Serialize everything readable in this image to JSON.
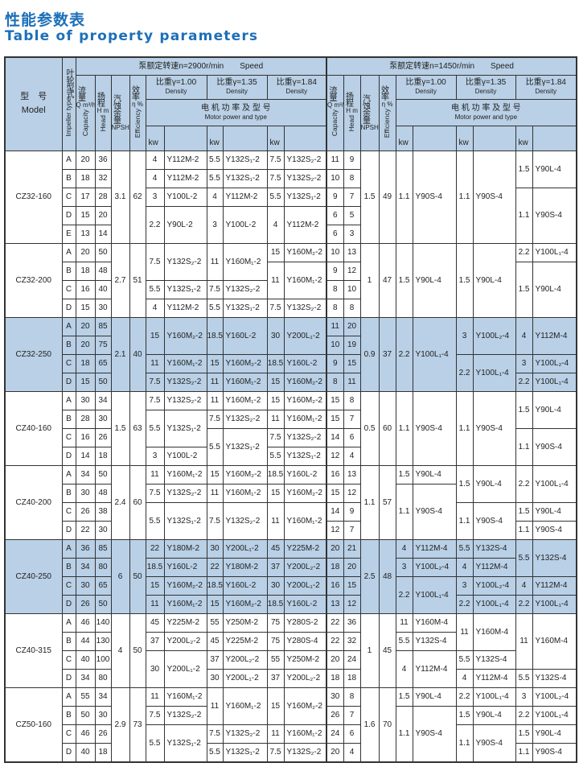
{
  "title_cn": "性能参数表",
  "title_en": "Table of property parameters",
  "header": {
    "model_cn": "型　号",
    "model_en": "Model",
    "impeller_cn": "叶轮型式",
    "impeller_en": "Impeller type",
    "speed1": "泵额定转速n=2900r/min　　Speed",
    "speed2": "泵额定转速n=1450r/min　　Speed",
    "capacity_cn": "流量",
    "capacity_unit": "Q m³/h",
    "capacity_en": "Capacity",
    "head_cn": "扬程",
    "head_unit": "H m",
    "head_en": "Head",
    "npsh_cn": "汽蚀余量",
    "npsh_unit": "NPSH m",
    "eff_cn": "效率",
    "eff_unit": "η %",
    "eff_en": "Efficiency",
    "density_labels": [
      "比重γ=1.00",
      "比重γ=1.35",
      "比重γ=1.84"
    ],
    "density_en": "Density",
    "motor_cn": "电 机 功 率 及 型 号",
    "motor_en": "Motor power and type",
    "kw": "kw"
  },
  "highlight_color": "#b9d0e6",
  "title_color": "#1d6fb8",
  "groups": [
    {
      "model": "CZ32-160",
      "blue": false,
      "imp": [
        "A",
        "B",
        "C",
        "D",
        "E"
      ],
      "q": [
        "20",
        "18",
        "17",
        "15",
        "13"
      ],
      "h": [
        "36",
        "32",
        "28",
        "20",
        "14"
      ],
      "npsh": "3.1",
      "eff": "62",
      "m1": [
        [
          "4",
          "Y112M-2",
          1
        ],
        [
          "4",
          "Y112M-2",
          1
        ],
        [
          "3",
          "Y100L-2",
          1
        ],
        [
          "2.2",
          "Y90L-2",
          2
        ]
      ],
      "m2": [
        [
          "5.5",
          "Y132S₁-2",
          1
        ],
        [
          "5.5",
          "Y132S₁-2",
          1
        ],
        [
          "4",
          "Y112M-2",
          1
        ],
        [
          "3",
          "Y100L-2",
          2
        ]
      ],
      "m3": [
        [
          "7.5",
          "Y132S₂-2",
          1
        ],
        [
          "7.5",
          "Y132S₂-2",
          1
        ],
        [
          "5.5",
          "Y132S₁-2",
          1
        ],
        [
          "4",
          "Y112M-2",
          2
        ]
      ],
      "q2": [
        "11",
        "10",
        "9",
        "6",
        "6"
      ],
      "h2": [
        "9",
        "8",
        "7",
        "5",
        "3"
      ],
      "npsh2": "1.5",
      "eff2": "49",
      "m4": [
        [
          "1.1",
          "Y90S-4",
          5
        ]
      ],
      "m5": [
        [
          "1.1",
          "Y90S-4",
          5
        ]
      ],
      "m6": [
        [
          "1.5",
          "Y90L-4",
          2
        ],
        [
          "1.1",
          "Y90S-4",
          3
        ]
      ]
    },
    {
      "model": "CZ32-200",
      "blue": false,
      "imp": [
        "A",
        "B",
        "C",
        "D"
      ],
      "q": [
        "20",
        "18",
        "16",
        "15"
      ],
      "h": [
        "50",
        "48",
        "40",
        "30"
      ],
      "npsh": "2.7",
      "eff": "51",
      "m1": [
        [
          "7.5",
          "Y132S₂-2",
          2
        ],
        [
          "5.5",
          "Y132S₁-2",
          1
        ],
        [
          "4",
          "Y112M-2",
          1
        ]
      ],
      "m2": [
        [
          "11",
          "Y160M₁-2",
          2
        ],
        [
          "7.5",
          "Y132S₂-2",
          1
        ],
        [
          "5.5",
          "Y132S₁-2",
          1
        ]
      ],
      "m3": [
        [
          "15",
          "Y160M₂-2",
          1
        ],
        [
          "11",
          "Y160M₁-2",
          2
        ],
        [
          "7.5",
          "Y132S₂-2",
          1
        ]
      ],
      "q2": [
        "10",
        "9",
        "8",
        "8"
      ],
      "h2": [
        "13",
        "12",
        "10",
        "8"
      ],
      "npsh2": "1",
      "eff2": "47",
      "m4": [
        [
          "1.5",
          "Y90L-4",
          4
        ]
      ],
      "m5": [
        [
          "1.5",
          "Y90L-4",
          4
        ]
      ],
      "m6": [
        [
          "2.2",
          "Y100L₁-4",
          1
        ],
        [
          "1.5",
          "Y90L-4",
          3
        ]
      ]
    },
    {
      "model": "CZ32-250",
      "blue": true,
      "imp": [
        "A",
        "B",
        "C",
        "D"
      ],
      "q": [
        "20",
        "20",
        "18",
        "15"
      ],
      "h": [
        "85",
        "75",
        "65",
        "50"
      ],
      "npsh": "2.1",
      "eff": "40",
      "m1": [
        [
          "15",
          "Y160M₂-2",
          2
        ],
        [
          "11",
          "Y160M₁-2",
          1
        ],
        [
          "7.5",
          "Y132S₂-2",
          1
        ]
      ],
      "m2": [
        [
          "18.5",
          "Y160L-2",
          2
        ],
        [
          "15",
          "Y160M₂-2",
          1
        ],
        [
          "11",
          "Y160M₁-2",
          1
        ]
      ],
      "m3": [
        [
          "30",
          "Y200L₁-2",
          2
        ],
        [
          "18.5",
          "Y160L-2",
          1
        ],
        [
          "15",
          "Y160M₂-2",
          1
        ]
      ],
      "q2": [
        "11",
        "10",
        "9",
        "8"
      ],
      "h2": [
        "20",
        "19",
        "15",
        "11"
      ],
      "npsh2": "0.9",
      "eff2": "37",
      "m4": [
        [
          "2.2",
          "Y100L₁-4",
          4
        ]
      ],
      "m5": [
        [
          "3",
          "Y100L₂-4",
          2
        ],
        [
          "2.2",
          "Y100L₁-4",
          2
        ]
      ],
      "m6": [
        [
          "4",
          "Y112M-4",
          2
        ],
        [
          "3",
          "Y100L₂-4",
          1
        ],
        [
          "2.2",
          "Y100L₁-4",
          1
        ]
      ]
    },
    {
      "model": "CZ40-160",
      "blue": false,
      "imp": [
        "A",
        "B",
        "C",
        "D"
      ],
      "q": [
        "30",
        "28",
        "16",
        "14"
      ],
      "h": [
        "34",
        "30",
        "26",
        "18"
      ],
      "npsh": "1.5",
      "eff": "63",
      "m1": [
        [
          "7.5",
          "Y132S₂-2",
          1
        ],
        [
          "5.5",
          "Y132S₁-2",
          2
        ],
        [
          "3",
          "Y100L-2",
          1
        ]
      ],
      "m2": [
        [
          "11",
          "Y160M₁-2",
          1
        ],
        [
          "7.5",
          "Y132S₂-2",
          1
        ],
        [
          "5.5",
          "Y132S₁-2",
          2
        ]
      ],
      "m3": [
        [
          "15",
          "Y160M₂-2",
          1
        ],
        [
          "11",
          "Y160M₁-2",
          1
        ],
        [
          "7.5",
          "Y132S₂-2",
          1
        ],
        [
          "5.5",
          "Y132S₁-2",
          1
        ]
      ],
      "q2": [
        "15",
        "15",
        "14",
        "12"
      ],
      "h2": [
        "8",
        "7",
        "6",
        "4"
      ],
      "npsh2": "0.5",
      "eff2": "60",
      "m4": [
        [
          "1.1",
          "Y90S-4",
          4
        ]
      ],
      "m5": [
        [
          "1.1",
          "Y90S-4",
          4
        ]
      ],
      "m6": [
        [
          "1.5",
          "Y90L-4",
          2
        ],
        [
          "1.1",
          "Y90S-4",
          2
        ]
      ]
    },
    {
      "model": "CZ40-200",
      "blue": false,
      "imp": [
        "A",
        "B",
        "C",
        "D"
      ],
      "q": [
        "34",
        "30",
        "26",
        "22"
      ],
      "h": [
        "50",
        "48",
        "38",
        "30"
      ],
      "npsh": "2.4",
      "eff": "60",
      "m1": [
        [
          "11",
          "Y160M₁-2",
          1
        ],
        [
          "7.5",
          "Y132S₂-2",
          1
        ],
        [
          "5.5",
          "Y132S₁-2",
          2
        ]
      ],
      "m2": [
        [
          "15",
          "Y160M₂-2",
          1
        ],
        [
          "11",
          "Y160M₁-2",
          1
        ],
        [
          "7.5",
          "Y132S₂-2",
          2
        ]
      ],
      "m3": [
        [
          "18.5",
          "Y160L-2",
          1
        ],
        [
          "15",
          "Y160M₂-2",
          1
        ],
        [
          "11",
          "Y160M₁-2",
          2
        ]
      ],
      "q2": [
        "16",
        "15",
        "14",
        "12"
      ],
      "h2": [
        "13",
        "12",
        "9",
        "7"
      ],
      "npsh2": "1.1",
      "eff2": "57",
      "m4": [
        [
          "1.5",
          "Y90L-4",
          1
        ],
        [
          "1.1",
          "Y90S-4",
          3
        ]
      ],
      "m5": [
        [
          "1.5",
          "Y90L-4",
          2
        ],
        [
          "1.1",
          "Y90S-4",
          2
        ]
      ],
      "m6": [
        [
          "2.2",
          "Y100L₁-4",
          2
        ],
        [
          "1.5",
          "Y90L-4",
          1
        ],
        [
          "1.1",
          "Y90S-4",
          1
        ]
      ]
    },
    {
      "model": "CZ40-250",
      "blue": true,
      "imp": [
        "A",
        "B",
        "C",
        "D"
      ],
      "q": [
        "36",
        "34",
        "30",
        "26"
      ],
      "h": [
        "85",
        "80",
        "65",
        "50"
      ],
      "npsh": "6",
      "eff": "50",
      "m1": [
        [
          "22",
          "Y180M-2",
          1
        ],
        [
          "18.5",
          "Y160L-2",
          1
        ],
        [
          "15",
          "Y160M₂-2",
          1
        ],
        [
          "11",
          "Y160M₁-2",
          1
        ]
      ],
      "m2": [
        [
          "30",
          "Y200L₁-2",
          1
        ],
        [
          "22",
          "Y180M-2",
          1
        ],
        [
          "18.5",
          "Y160L-2",
          1
        ],
        [
          "15",
          "Y160M₂-2",
          1
        ]
      ],
      "m3": [
        [
          "45",
          "Y225M-2",
          1
        ],
        [
          "37",
          "Y200L₂-2",
          1
        ],
        [
          "30",
          "Y200L₁-2",
          1
        ],
        [
          "18.5",
          "Y160L-2",
          1
        ]
      ],
      "q2": [
        "20",
        "18",
        "16",
        "13"
      ],
      "h2": [
        "21",
        "20",
        "15",
        "12"
      ],
      "npsh2": "2.5",
      "eff2": "48",
      "m4": [
        [
          "4",
          "Y112M-4",
          1
        ],
        [
          "3",
          "Y100L₂-4",
          1
        ],
        [
          "2.2",
          "Y100L₁-4",
          2
        ]
      ],
      "m5": [
        [
          "5.5",
          "Y132S-4",
          1
        ],
        [
          "4",
          "Y112M-4",
          1
        ],
        [
          "3",
          "Y100L₂-4",
          1
        ],
        [
          "2.2",
          "Y100L₁-4",
          1
        ]
      ],
      "m6": [
        [
          "5.5",
          "Y132S-4",
          2
        ],
        [
          "4",
          "Y112M-4",
          1
        ],
        [
          "2.2",
          "Y100L₁-4",
          1
        ]
      ]
    },
    {
      "model": "CZ40-315",
      "blue": false,
      "imp": [
        "A",
        "B",
        "C",
        "D"
      ],
      "q": [
        "46",
        "44",
        "40",
        "34"
      ],
      "h": [
        "140",
        "130",
        "100",
        "80"
      ],
      "npsh": "4",
      "eff": "50",
      "m1": [
        [
          "45",
          "Y225M-2",
          1
        ],
        [
          "37",
          "Y200L₂-2",
          1
        ],
        [
          "30",
          "Y200L₁-2",
          2
        ]
      ],
      "m2": [
        [
          "55",
          "Y250M-2",
          1
        ],
        [
          "45",
          "Y225M-2",
          1
        ],
        [
          "37",
          "Y200L₂-2",
          1
        ],
        [
          "30",
          "Y200L₁-2",
          1
        ]
      ],
      "m3": [
        [
          "75",
          "Y280S-2",
          1
        ],
        [
          "75",
          "Y280S-4",
          1
        ],
        [
          "55",
          "Y250M-2",
          1
        ],
        [
          "37",
          "Y200L₂-2",
          1
        ]
      ],
      "q2": [
        "22",
        "22",
        "20",
        "18"
      ],
      "h2": [
        "36",
        "32",
        "24",
        "18"
      ],
      "npsh2": "1",
      "eff2": "45",
      "m4": [
        [
          "11",
          "Y160M-4",
          1
        ],
        [
          "5.5",
          "Y132S-4",
          1
        ],
        [
          "4",
          "Y112M-4",
          2
        ]
      ],
      "m5": [
        [
          "11",
          "Y160M-4",
          2
        ],
        [
          "5.5",
          "Y132S-4",
          1
        ],
        [
          "4",
          "Y112M-4",
          1
        ]
      ],
      "m6": [
        [
          "11",
          "Y160M-4",
          3
        ],
        [
          "5.5",
          "Y132S-4",
          1
        ]
      ]
    },
    {
      "model": "CZ50-160",
      "blue": false,
      "imp": [
        "A",
        "B",
        "C",
        "D"
      ],
      "q": [
        "55",
        "50",
        "46",
        "40"
      ],
      "h": [
        "34",
        "30",
        "26",
        "18"
      ],
      "npsh": "2.9",
      "eff": "73",
      "m1": [
        [
          "11",
          "Y160M₁-2",
          1
        ],
        [
          "7.5",
          "Y132S₂-2",
          1
        ],
        [
          "5.5",
          "Y132S₁-2",
          2
        ]
      ],
      "m2": [
        [
          "11",
          "Y160M₁-2",
          2
        ],
        [
          "7.5",
          "Y132S₂-2",
          1
        ],
        [
          "5.5",
          "Y132S₁-2",
          1
        ]
      ],
      "m3": [
        [
          "15",
          "Y160M₂-2",
          2
        ],
        [
          "11",
          "Y160M₁-2",
          1
        ],
        [
          "7.5",
          "Y132S₂-2",
          1
        ]
      ],
      "q2": [
        "30",
        "26",
        "24",
        "20"
      ],
      "h2": [
        "8",
        "7",
        "6",
        "4"
      ],
      "npsh2": "1.6",
      "eff2": "70",
      "m4": [
        [
          "1.5",
          "Y90L-4",
          1
        ],
        [
          "1.1",
          "Y90S-4",
          3
        ]
      ],
      "m5": [
        [
          "2.2",
          "Y100L₁-4",
          1
        ],
        [
          "1.5",
          "Y90L-4",
          1
        ],
        [
          "1.1",
          "Y90S-4",
          2
        ]
      ],
      "m6": [
        [
          "3",
          "Y100L₂-4",
          1
        ],
        [
          "2.2",
          "Y100L₁-4",
          1
        ],
        [
          "1.5",
          "Y90L-4",
          1
        ],
        [
          "1.1",
          "Y90S-4",
          1
        ]
      ]
    }
  ]
}
